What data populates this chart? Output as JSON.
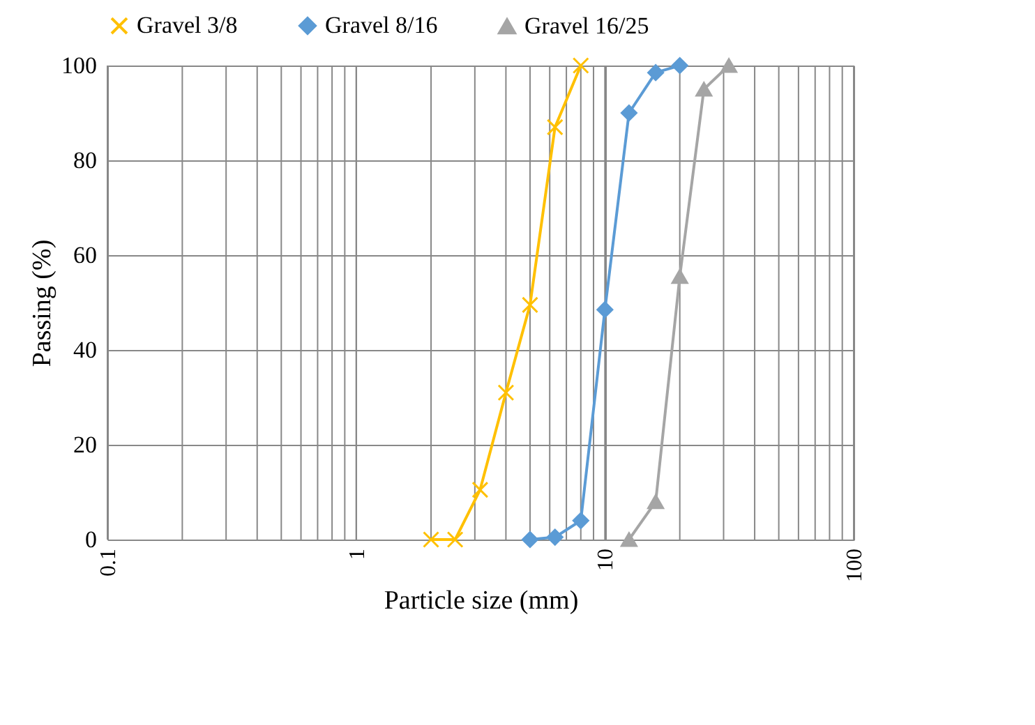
{
  "chart_data": {
    "type": "line",
    "xlabel": "Particle size (mm)",
    "ylabel": "Passing (%)",
    "log": "x",
    "xlim": [
      0.1,
      100
    ],
    "xticks": [
      0.1,
      1,
      10,
      100
    ],
    "ylim": [
      0,
      100
    ],
    "yticks": [
      0,
      20,
      40,
      60,
      80,
      100
    ],
    "grid": true,
    "legend": "top",
    "series": [
      {
        "name": "Gravel 3/8",
        "color": "#ffc000",
        "marker": "cross",
        "x": [
          2,
          2.5,
          3.15,
          4,
          5,
          6.3,
          8
        ],
        "values": [
          0,
          0,
          10.5,
          31,
          49.5,
          87,
          100
        ]
      },
      {
        "name": "Gravel 8/16",
        "color": "#5b9bd5",
        "marker": "diamond",
        "x": [
          5,
          6.3,
          8,
          10,
          12.5,
          16,
          20
        ],
        "values": [
          0,
          0.5,
          4,
          48.5,
          90,
          98.5,
          100
        ]
      },
      {
        "name": "Gravel 16/25",
        "color": "#a5a5a5",
        "marker": "triangle",
        "x": [
          12.5,
          16,
          20,
          25,
          31.5
        ],
        "values": [
          0,
          8,
          55.5,
          95,
          100
        ]
      }
    ]
  }
}
